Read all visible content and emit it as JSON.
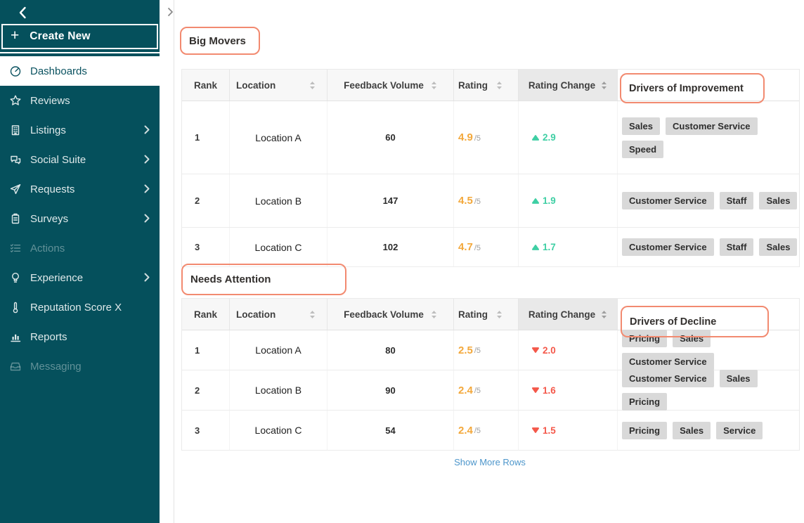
{
  "colors": {
    "sidebar_bg": "#05505C",
    "annotation_outline": "#F28A70",
    "positive_change": "#3FCFA4",
    "negative_change": "#F4584A",
    "rating_orange": "#F3A83B",
    "link_blue": "#4D96CB",
    "tag_bg": "#D9D9D9",
    "sorted_column_header_bg": "#E9E9E9"
  },
  "sidebar": {
    "collapse_icon": "chevron-left",
    "plus_icon": "+",
    "create_new_label": "Create New",
    "items": [
      {
        "label": "Dashboards",
        "icon": "dashboard-gauge",
        "state": "active",
        "has_submenu": false
      },
      {
        "label": "Reviews",
        "icon": "star",
        "state": "normal",
        "has_submenu": false
      },
      {
        "label": "Listings",
        "icon": "building",
        "state": "normal",
        "has_submenu": true
      },
      {
        "label": "Social Suite",
        "icon": "chat-bubbles",
        "state": "normal",
        "has_submenu": true
      },
      {
        "label": "Requests",
        "icon": "paper-plane",
        "state": "normal",
        "has_submenu": true
      },
      {
        "label": "Surveys",
        "icon": "clipboard",
        "state": "normal",
        "has_submenu": true
      },
      {
        "label": "Actions",
        "icon": "checklist",
        "state": "disabled",
        "has_submenu": false
      },
      {
        "label": "Experience",
        "icon": "lightbulb",
        "state": "normal",
        "has_submenu": true
      },
      {
        "label": "Reputation Score X",
        "icon": "thermometer",
        "state": "normal",
        "has_submenu": false
      },
      {
        "label": "Reports",
        "icon": "bar-chart",
        "state": "normal",
        "has_submenu": false
      },
      {
        "label": "Messaging",
        "icon": "inbox",
        "state": "disabled",
        "has_submenu": false
      }
    ]
  },
  "gutter": {
    "expand_icon": "chevron-right"
  },
  "table_headers": {
    "rank": "Rank",
    "location": "Location",
    "feedback_volume": "Feedback Volume",
    "rating": "Rating",
    "rating_change": "Rating Change"
  },
  "rating_denominator": "/5",
  "tables": [
    {
      "name": "big-movers",
      "title": "Big Movers",
      "drivers_header": "Drivers of Improvement",
      "rows": [
        {
          "rank": "1",
          "location": "Location A",
          "feedback_volume": "60",
          "rating": "4.9",
          "rating_change": "2.9",
          "direction": "up",
          "tags": [
            "Sales",
            "Customer Service",
            "Speed"
          ]
        },
        {
          "rank": "2",
          "location": "Location B",
          "feedback_volume": "147",
          "rating": "4.5",
          "rating_change": "1.9",
          "direction": "up",
          "tags": [
            "Customer Service",
            "Staff",
            "Sales"
          ]
        },
        {
          "rank": "3",
          "location": "Location C",
          "feedback_volume": "102",
          "rating": "4.7",
          "rating_change": "1.7",
          "direction": "up",
          "tags": [
            "Customer Service",
            "Staff",
            "Sales"
          ]
        }
      ]
    },
    {
      "name": "needs-attention",
      "title": "Needs Attention",
      "drivers_header": "Drivers of Decline",
      "rows": [
        {
          "rank": "1",
          "location": "Location A",
          "feedback_volume": "80",
          "rating": "2.5",
          "rating_change": "2.0",
          "direction": "down",
          "tags": [
            "Pricing",
            "Sales",
            "Customer Service"
          ]
        },
        {
          "rank": "2",
          "location": "Location B",
          "feedback_volume": "90",
          "rating": "2.4",
          "rating_change": "1.6",
          "direction": "down",
          "tags": [
            "Customer Service",
            "Sales",
            "Pricing"
          ]
        },
        {
          "rank": "3",
          "location": "Location C",
          "feedback_volume": "54",
          "rating": "2.4",
          "rating_change": "1.5",
          "direction": "down",
          "tags": [
            "Pricing",
            "Sales",
            "Service"
          ]
        }
      ]
    }
  ],
  "footer": {
    "show_more_label": "Show More Rows"
  }
}
